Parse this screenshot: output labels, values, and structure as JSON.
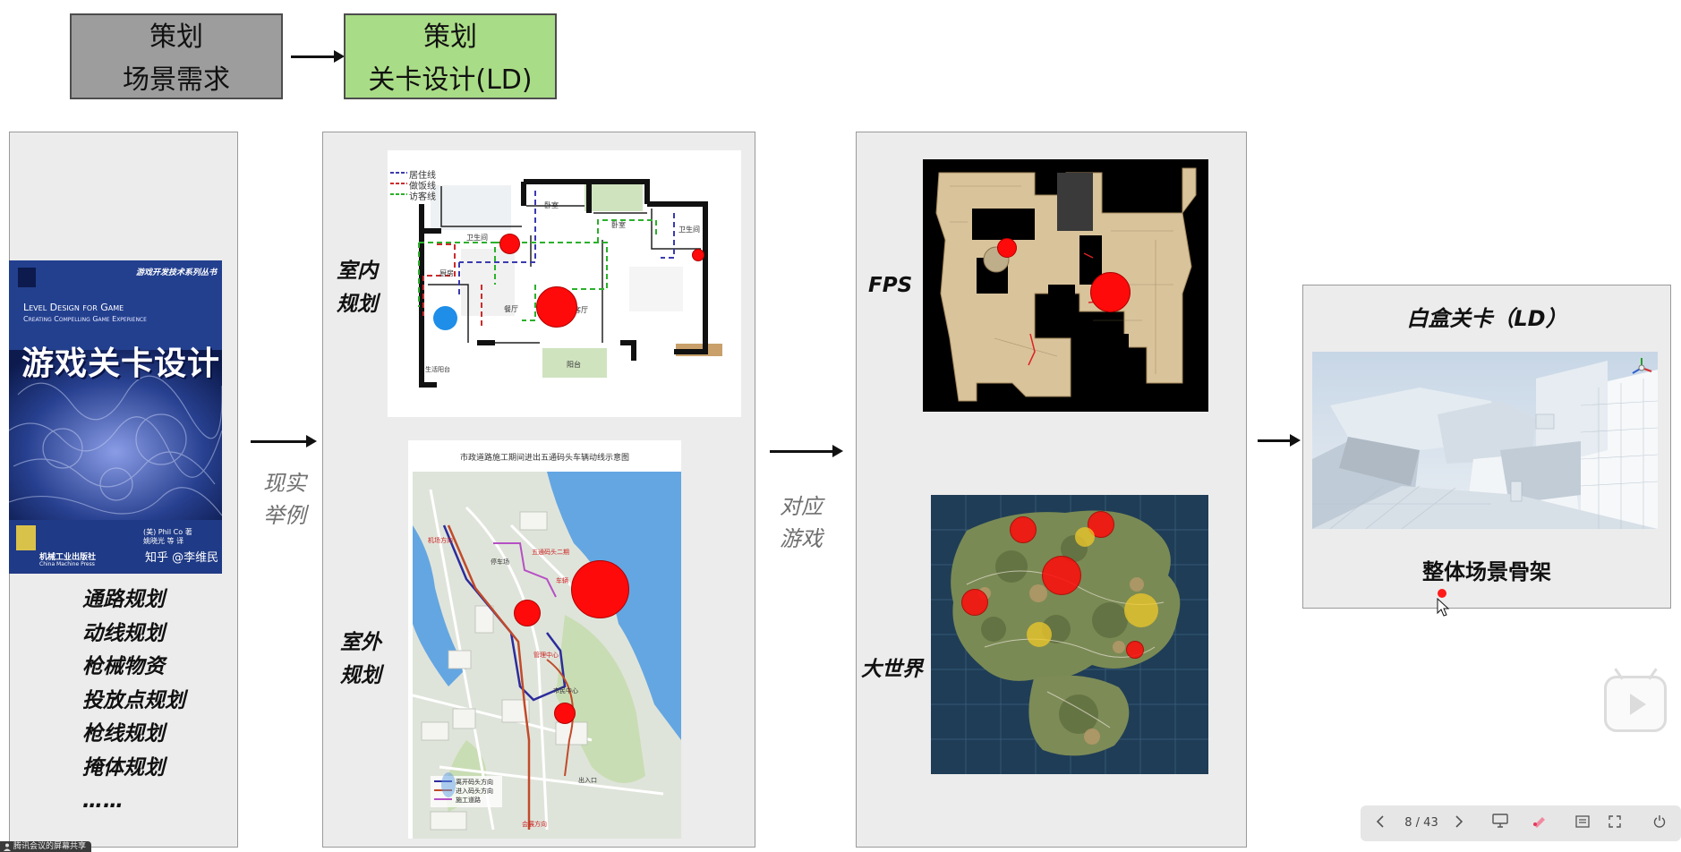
{
  "flow": {
    "box1": {
      "line1": "策划",
      "line2": "场景需求",
      "color": "#9d9d9d"
    },
    "box2": {
      "line1": "策划",
      "line2": "关卡设计(LD)",
      "color": "#a9dc86"
    }
  },
  "book_panel": {
    "book": {
      "series": "游戏开发技术系列丛书",
      "title_en_1": "Level Design for Game",
      "title_en_2": "Creating Compelling Game Experience",
      "title_cn": "游戏关卡设计",
      "author": "(美) Phil Co 著",
      "translators": "姚晓光 等 译",
      "publisher": "机械工业出版社",
      "publisher_en": "China Machine Press",
      "watermark": "知乎 @李维民"
    },
    "list": [
      "通路规划",
      "动线规划",
      "枪械物资",
      "投放点规划",
      "枪线规划",
      "掩体规划",
      "……"
    ]
  },
  "labels": {
    "real_example": [
      "现实",
      "举例"
    ],
    "corresponding_game": [
      "对应",
      "游戏"
    ]
  },
  "planning_panel": {
    "indoor_label": [
      "室内",
      "规划"
    ],
    "outdoor_label": [
      "室外",
      "规划"
    ],
    "floorplan": {
      "legend": [
        "居住线",
        "做饭线",
        "访客线"
      ],
      "rooms": [
        "卧室",
        "卧室",
        "卫生间",
        "卫生间",
        "厨房",
        "餐厅",
        "客厅",
        "阳台",
        "生活阳台"
      ]
    },
    "outdoor_map": {
      "title": "市政道路施工期间进出五通码头车辆动线示意图",
      "labels": [
        "机场方向",
        "五通码头二期",
        "车辆",
        "停车场",
        "管理中心",
        "市民中心",
        "会展方向",
        "出入口"
      ],
      "legend": [
        "离开码头方向",
        "进入码头方向",
        "施工道路"
      ]
    }
  },
  "game_panel": {
    "fps_label": "FPS",
    "world_label": "大世界"
  },
  "result_panel": {
    "title": "白盒关卡（LD）",
    "caption": "整体场景骨架"
  },
  "toolbar": {
    "prev_icon": "chevron-left-icon",
    "page": "8 / 43",
    "next_icon": "chevron-right-icon"
  },
  "status": {
    "bottom_left": "腾讯会议的屏幕共享"
  },
  "colors": {
    "panel_bg": "#ececec",
    "red_marker": "#ff0a0a",
    "gray_box": "#9d9d9d",
    "green_box": "#a9dc86"
  }
}
